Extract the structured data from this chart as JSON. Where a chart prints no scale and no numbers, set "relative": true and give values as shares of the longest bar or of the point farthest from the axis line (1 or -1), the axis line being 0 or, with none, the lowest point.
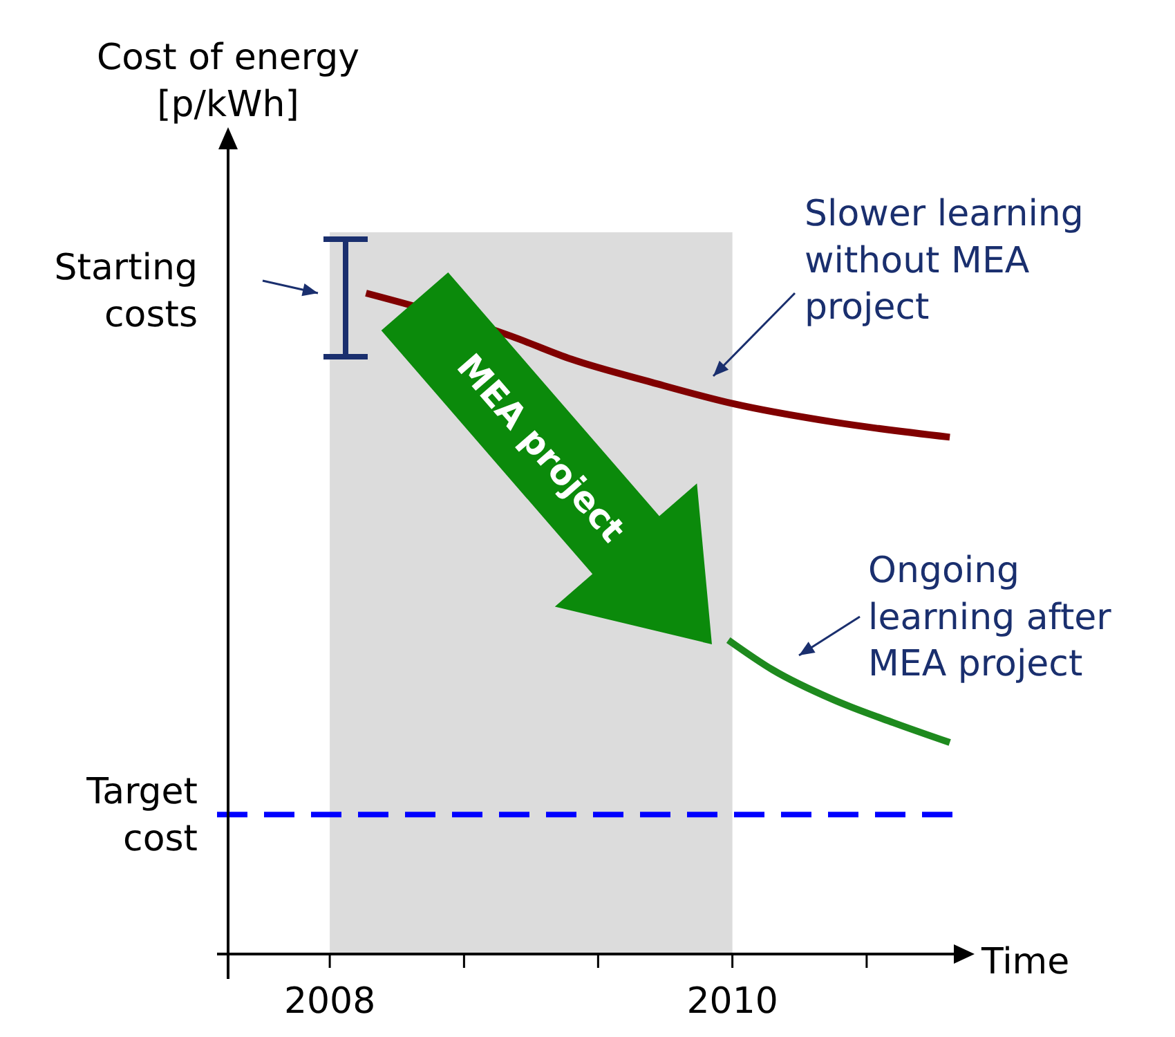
{
  "chart_data": {
    "type": "line",
    "relative": true,
    "xlabel": "Time",
    "ylabel": "Cost of energy [p/kWh]",
    "xlim": [
      2007.44,
      2011.1
    ],
    "xticks": [
      2008,
      {
        "value": 2008.667,
        "label": null
      },
      {
        "value": 2009.333,
        "label": null
      },
      2010,
      {
        "value": 2010.667,
        "label": null
      }
    ],
    "series": [
      {
        "name": "Slower learning without MEA project",
        "color": "#800000",
        "x": [
          2008.18,
          2008.9,
          2009.2,
          2009.6,
          2010.0,
          2010.5,
          2011.08
        ],
        "values": [
          1.0,
          0.935,
          0.9,
          0.865,
          0.833,
          0.805,
          0.782
        ]
      },
      {
        "name": "Ongoing learning after MEA project",
        "color": "#1e8a1e",
        "x": [
          2009.98,
          2010.2,
          2010.5,
          2010.8,
          2011.08
        ],
        "values": [
          0.475,
          0.43,
          0.385,
          0.35,
          0.32
        ]
      }
    ],
    "ref_lines": [
      {
        "axis": "y",
        "value": 0.211,
        "label": "Target cost",
        "color": "#0000ff",
        "line_style": "dashed"
      }
    ],
    "bands": [
      {
        "axis": "x",
        "from": 2008,
        "to": 2010,
        "color": "#dcdcdc"
      }
    ],
    "annotations": [
      "Starting costs",
      "MEA project"
    ],
    "line_style": "solid"
  }
}
